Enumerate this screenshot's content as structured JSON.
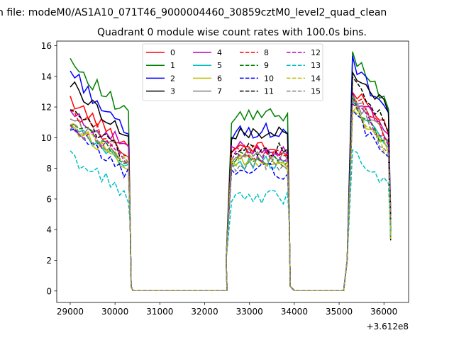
{
  "chart_data": {
    "type": "line",
    "suptitle": "n file: modeM0/AS1A10_071T46_9000004460_30859cztM0_level2_quad_clean",
    "title": "Quadrant 0 module wise count rates with 100.0s bins.",
    "xlabel": "",
    "ylabel": "",
    "x_offset_label": "+3.612e8",
    "xlim": [
      28700,
      36550
    ],
    "ylim": [
      -0.75,
      16.3
    ],
    "x_ticks": [
      29000,
      30000,
      31000,
      32000,
      33000,
      34000,
      35000,
      36000
    ],
    "x_tick_labels": [
      "29000",
      "30000",
      "31000",
      "32000",
      "33000",
      "34000",
      "35000",
      "36000"
    ],
    "y_ticks": [
      0,
      2,
      4,
      6,
      8,
      10,
      12,
      14,
      16
    ],
    "y_tick_labels": [
      "0",
      "2",
      "4",
      "6",
      "8",
      "10",
      "12",
      "14",
      "16"
    ],
    "legend_position": "upper center",
    "legend_ncol": 4,
    "segments": [
      {
        "start": 29000,
        "end": 30300,
        "points": 14
      },
      {
        "start": 32600,
        "end": 33850,
        "points": 14
      },
      {
        "start": 35300,
        "end": 36100,
        "points": 9
      }
    ],
    "gaps": [
      {
        "start": 30400,
        "end": 32500
      },
      {
        "start": 34000,
        "end": 35100
      }
    ],
    "series": [
      {
        "name": "0",
        "color": "#ff0000",
        "dashed": false,
        "levels": [
          12.5,
          9.4,
          13.0
        ],
        "drop": [
          9.4,
          8.0,
          10.6
        ],
        "amp": 0.45
      },
      {
        "name": "1",
        "color": "#008000",
        "dashed": false,
        "levels": [
          15.1,
          11.2,
          15.5
        ],
        "drop": [
          11.3,
          11.2,
          12.3
        ],
        "amp": 0.55
      },
      {
        "name": "2",
        "color": "#0000ff",
        "dashed": false,
        "levels": [
          14.4,
          10.2,
          14.9
        ],
        "drop": [
          10.0,
          10.3,
          11.2
        ],
        "amp": 0.5
      },
      {
        "name": "3",
        "color": "#000000",
        "dashed": false,
        "levels": [
          13.5,
          10.0,
          14.0
        ],
        "drop": [
          10.0,
          10.6,
          12.0
        ],
        "amp": 0.45
      },
      {
        "name": "4",
        "color": "#bf00bf",
        "dashed": false,
        "levels": [
          11.5,
          9.2,
          12.7
        ],
        "drop": [
          9.5,
          9.0,
          10.5
        ],
        "amp": 0.45
      },
      {
        "name": "5",
        "color": "#00bfbf",
        "dashed": false,
        "levels": [
          10.6,
          8.0,
          12.5
        ],
        "drop": [
          8.2,
          8.8,
          9.2
        ],
        "amp": 0.45
      },
      {
        "name": "6",
        "color": "#bfbf00",
        "dashed": false,
        "levels": [
          10.8,
          8.5,
          12.0
        ],
        "drop": [
          8.2,
          8.0,
          9.0
        ],
        "amp": 0.45
      },
      {
        "name": "7",
        "color": "#808080",
        "dashed": false,
        "levels": [
          11.2,
          8.8,
          12.6
        ],
        "drop": [
          8.8,
          8.6,
          9.8
        ],
        "amp": 0.45
      },
      {
        "name": "8",
        "color": "#ff0000",
        "dashed": true,
        "levels": [
          11.8,
          9.0,
          12.8
        ],
        "drop": [
          9.0,
          8.4,
          10.0
        ],
        "amp": 0.45
      },
      {
        "name": "9",
        "color": "#008000",
        "dashed": true,
        "levels": [
          11.2,
          8.6,
          12.3
        ],
        "drop": [
          8.4,
          8.2,
          9.4
        ],
        "amp": 0.45
      },
      {
        "name": "10",
        "color": "#0000ff",
        "dashed": true,
        "levels": [
          10.4,
          7.8,
          11.6
        ],
        "drop": [
          7.6,
          7.4,
          8.7
        ],
        "amp": 0.45
      },
      {
        "name": "11",
        "color": "#000000",
        "dashed": true,
        "levels": [
          11.7,
          9.0,
          13.6
        ],
        "drop": [
          8.8,
          9.1,
          10.8
        ],
        "amp": 0.5
      },
      {
        "name": "12",
        "color": "#bf00bf",
        "dashed": true,
        "levels": [
          10.9,
          8.7,
          12.3
        ],
        "drop": [
          8.6,
          8.2,
          9.6
        ],
        "amp": 0.45
      },
      {
        "name": "13",
        "color": "#00bfbf",
        "dashed": true,
        "levels": [
          8.8,
          5.8,
          9.3
        ],
        "drop": [
          6.2,
          6.5,
          6.8
        ],
        "amp": 0.5
      },
      {
        "name": "14",
        "color": "#bfbf00",
        "dashed": true,
        "levels": [
          11.0,
          8.3,
          12.2
        ],
        "drop": [
          8.1,
          8.1,
          9.0
        ],
        "amp": 0.45
      },
      {
        "name": "15",
        "color": "#808080",
        "dashed": true,
        "levels": [
          10.6,
          8.1,
          12.9
        ],
        "drop": [
          8.5,
          8.2,
          8.6
        ],
        "amp": 0.45
      }
    ]
  }
}
